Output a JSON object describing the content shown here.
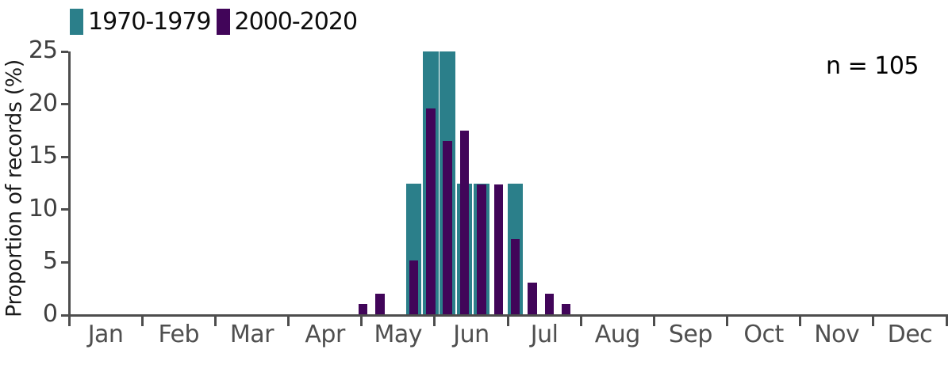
{
  "page": {
    "background": "#ffffff"
  },
  "chart_data": {
    "type": "bar",
    "title": "",
    "annotation": "n = 105",
    "ylabel": "Proportion of records (%)",
    "xlabel": "",
    "ylim": [
      0,
      25
    ],
    "yticks": [
      0,
      5,
      10,
      15,
      20,
      25
    ],
    "categories": [
      "Jan",
      "Feb",
      "Mar",
      "Apr",
      "May",
      "Jun",
      "Jul",
      "Aug",
      "Sep",
      "Oct",
      "Nov",
      "Dec"
    ],
    "x_axis_note": "weekly bins, positions in month units (0 = Jan 1, 12 = Dec 31)",
    "bin_centers_months": [
      4.02,
      4.252,
      4.483,
      4.715,
      4.946,
      5.178,
      5.409,
      5.641,
      5.873,
      6.104,
      6.336,
      6.567,
      6.799
    ],
    "series": [
      {
        "name": "1970-1979",
        "color": "#2b7f8a",
        "values": [
          0,
          0,
          0,
          12.5,
          25,
          25,
          12.5,
          12.5,
          0,
          12.5,
          0,
          0,
          0
        ]
      },
      {
        "name": "2000-2020",
        "color": "#410559",
        "values": [
          1.03,
          2.06,
          0,
          5.15,
          19.59,
          16.49,
          17.53,
          12.37,
          12.37,
          7.22,
          3.09,
          2.06,
          1.03
        ]
      }
    ],
    "legend_position": "top-left",
    "grid": false,
    "colors": {
      "axis": "#4d4d4d",
      "y_tick_label": "#3f3f3f",
      "month_label": "#4f4f4f",
      "annotation": "#000000",
      "ylabel": "#1a1a1a"
    }
  }
}
